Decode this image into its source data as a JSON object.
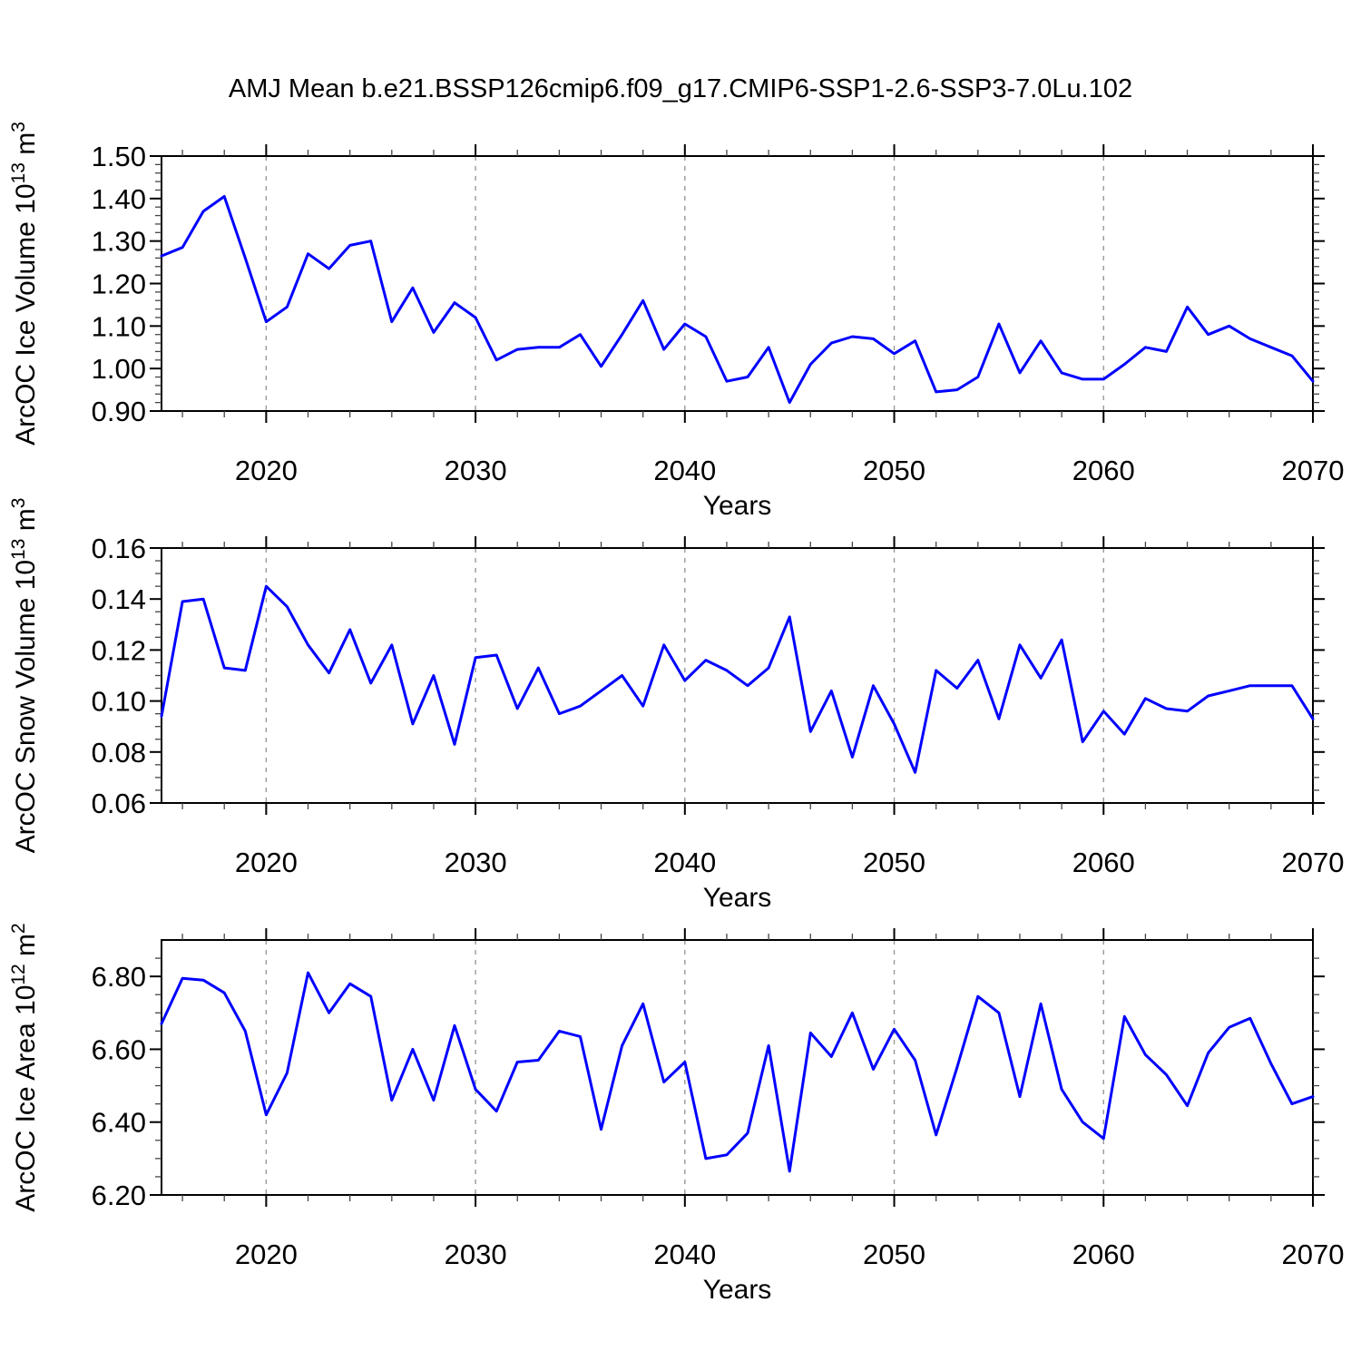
{
  "title": "AMJ Mean b.e21.BSSP126cmip6.f09_g17.CMIP6-SSP1-2.6-SSP3-7.0Lu.102",
  "chart_data": {
    "type": "line",
    "title": "AMJ Mean b.e21.BSSP126cmip6.f09_g17.CMIP6-SSP1-2.6-SSP3-7.0Lu.102",
    "line_color": "#0000ff",
    "xlabel": "Years",
    "xlim": [
      2015,
      2070
    ],
    "xticks": [
      2020,
      2030,
      2040,
      2050,
      2060,
      2070
    ],
    "xtick_labels": [
      "2020",
      "2030",
      "2040",
      "2050",
      "2060",
      "2070"
    ],
    "x_minor_step": 2,
    "grid": "dashed vertical lines at decade ticks",
    "legend": "none",
    "years": [
      2015,
      2016,
      2017,
      2018,
      2019,
      2020,
      2021,
      2022,
      2023,
      2024,
      2025,
      2026,
      2027,
      2028,
      2029,
      2030,
      2031,
      2032,
      2033,
      2034,
      2035,
      2036,
      2037,
      2038,
      2039,
      2040,
      2041,
      2042,
      2043,
      2044,
      2045,
      2046,
      2047,
      2048,
      2049,
      2050,
      2051,
      2052,
      2053,
      2054,
      2055,
      2056,
      2057,
      2058,
      2059,
      2060,
      2061,
      2062,
      2063,
      2064,
      2065,
      2066,
      2067,
      2068,
      2069,
      2070
    ],
    "panels": [
      {
        "name": "ice-volume",
        "ylabel": "ArcOC Ice Volume 10^13 m^3",
        "ylabel_rich": [
          {
            "t": "ArcOC Ice Volume 10"
          },
          {
            "t": "13",
            "sup": true
          },
          {
            "t": " m"
          },
          {
            "t": "3",
            "sup": true
          }
        ],
        "ylim": [
          0.9,
          1.5
        ],
        "yticks": [
          0.9,
          1.0,
          1.1,
          1.2,
          1.3,
          1.4,
          1.5
        ],
        "ytick_labels": [
          "0.90",
          "1.00",
          "1.10",
          "1.20",
          "1.30",
          "1.40",
          "1.50"
        ],
        "y_minor_step": 0.02,
        "values": [
          1.265,
          1.285,
          1.37,
          1.405,
          1.26,
          1.11,
          1.145,
          1.27,
          1.235,
          1.29,
          1.3,
          1.11,
          1.19,
          1.085,
          1.155,
          1.12,
          1.02,
          1.045,
          1.05,
          1.05,
          1.08,
          1.005,
          1.08,
          1.16,
          1.045,
          1.105,
          1.075,
          0.97,
          0.98,
          1.05,
          0.92,
          1.01,
          1.06,
          1.075,
          1.07,
          1.035,
          1.065,
          0.945,
          0.95,
          0.98,
          1.105,
          0.99,
          1.065,
          0.99,
          0.975,
          0.975,
          1.01,
          1.05,
          1.04,
          1.145,
          1.08,
          1.1,
          1.07,
          1.05,
          1.03,
          0.97
        ]
      },
      {
        "name": "snow-volume",
        "ylabel": "ArcOC Snow Volume 10^13 m^3",
        "ylabel_rich": [
          {
            "t": "ArcOC Snow Volume 10"
          },
          {
            "t": "13",
            "sup": true
          },
          {
            "t": " m"
          },
          {
            "t": "3",
            "sup": true
          }
        ],
        "ylim": [
          0.06,
          0.16
        ],
        "yticks": [
          0.06,
          0.08,
          0.1,
          0.12,
          0.14,
          0.16
        ],
        "ytick_labels": [
          "0.06",
          "0.08",
          "0.10",
          "0.12",
          "0.14",
          "0.16"
        ],
        "y_minor_step": 0.005,
        "values": [
          0.094,
          0.139,
          0.14,
          0.113,
          0.112,
          0.145,
          0.137,
          0.122,
          0.111,
          0.128,
          0.107,
          0.122,
          0.091,
          0.11,
          0.083,
          0.117,
          0.118,
          0.097,
          0.113,
          0.095,
          0.098,
          0.104,
          0.11,
          0.098,
          0.122,
          0.108,
          0.116,
          0.112,
          0.106,
          0.113,
          0.133,
          0.088,
          0.104,
          0.078,
          0.106,
          0.091,
          0.072,
          0.112,
          0.105,
          0.116,
          0.093,
          0.122,
          0.109,
          0.124,
          0.084,
          0.096,
          0.087,
          0.101,
          0.097,
          0.096,
          0.102,
          0.104,
          0.106,
          0.106,
          0.106,
          0.093
        ]
      },
      {
        "name": "ice-area",
        "ylabel": "ArcOC Ice Area 10^12 m^2",
        "ylabel_rich": [
          {
            "t": "ArcOC Ice Area 10"
          },
          {
            "t": "12",
            "sup": true
          },
          {
            "t": " m"
          },
          {
            "t": "2",
            "sup": true
          }
        ],
        "ylim": [
          6.2,
          6.9
        ],
        "yticks": [
          6.2,
          6.4,
          6.6,
          6.8
        ],
        "ytick_labels": [
          "6.20",
          "6.40",
          "6.60",
          "6.80"
        ],
        "y_minor_step": 0.05,
        "values": [
          6.67,
          6.795,
          6.79,
          6.755,
          6.65,
          6.42,
          6.535,
          6.81,
          6.7,
          6.78,
          6.745,
          6.46,
          6.6,
          6.46,
          6.665,
          6.49,
          6.43,
          6.565,
          6.57,
          6.65,
          6.635,
          6.38,
          6.61,
          6.725,
          6.51,
          6.565,
          6.3,
          6.31,
          6.37,
          6.61,
          6.265,
          6.645,
          6.58,
          6.7,
          6.545,
          6.655,
          6.57,
          6.365,
          6.55,
          6.745,
          6.7,
          6.47,
          6.725,
          6.49,
          6.4,
          6.355,
          6.69,
          6.585,
          6.53,
          6.445,
          6.59,
          6.66,
          6.685,
          6.56,
          6.45,
          6.47
        ]
      }
    ]
  }
}
